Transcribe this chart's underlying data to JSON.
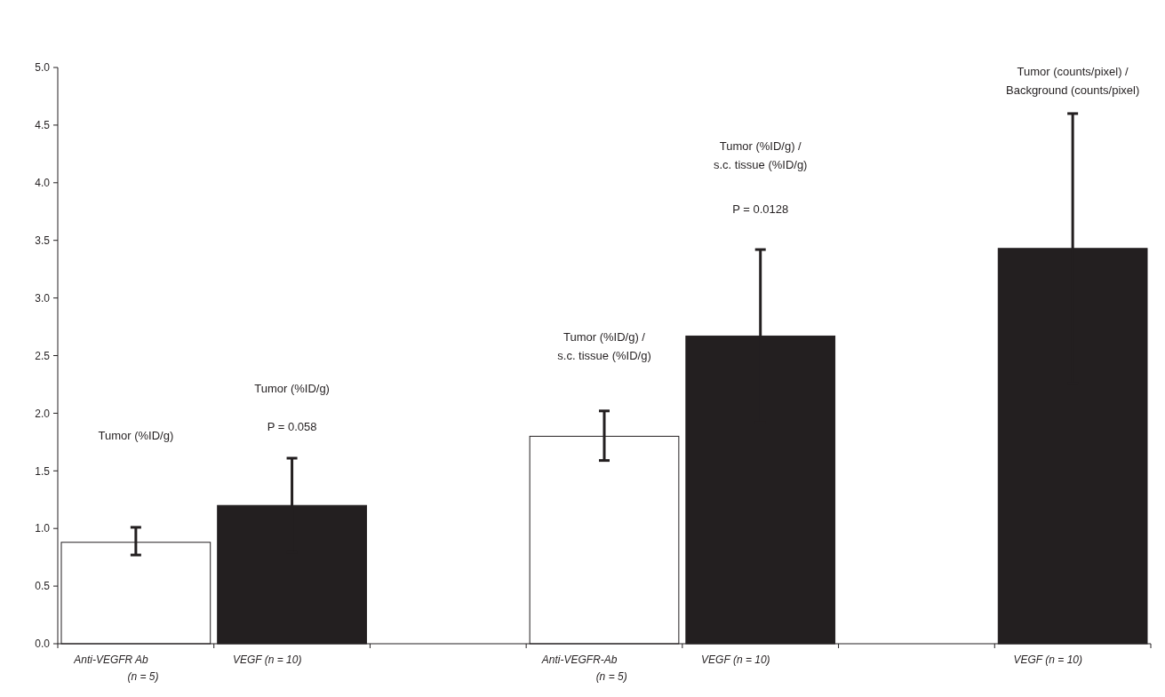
{
  "chart_data": {
    "type": "bar",
    "categories": [
      "Anti-VEGFR Ab\n(n = 5)",
      "VEGF (n = 10)",
      null,
      "Anti-VEGFR-Ab\n(n = 5)",
      "VEGF (n = 10)",
      null,
      "VEGF (n = 10)"
    ],
    "values": [
      0.88,
      1.2,
      null,
      1.8,
      2.67,
      null,
      3.43
    ],
    "colors": [
      "#ffffff",
      "#231f20",
      null,
      "#ffffff",
      "#231f20",
      null,
      "#231f20"
    ],
    "errors": [
      [
        0.77,
        1.01
      ],
      0.41,
      null,
      [
        1.59,
        2.02
      ],
      0.75,
      null,
      1.17
    ],
    "ylim": [
      0,
      5
    ],
    "yticks": [
      {
        "value": 0,
        "label": "0.0"
      },
      {
        "value": 0.5,
        "label": "0.5"
      },
      {
        "value": 1,
        "label": "1.0"
      },
      {
        "value": 1.5,
        "label": "1.5"
      },
      {
        "value": 2,
        "label": "2.0"
      },
      {
        "value": 2.5,
        "label": "2.5"
      },
      {
        "value": 3,
        "label": "3.0"
      },
      {
        "value": 3.5,
        "label": "3.5"
      },
      {
        "value": 4,
        "label": "4.0"
      },
      {
        "value": 4.5,
        "label": "4.5"
      },
      {
        "value": 5,
        "label": "5.0"
      }
    ],
    "annotations": [
      "Tumor (%ID/g)",
      "Tumor (%ID/g)",
      "P = 0.058",
      "Tumor (%ID/g) /\ns.c. tissue (%ID/g)",
      "Tumor (%ID/g) /\ns.c. tissue (%ID/g)",
      "P = 0.0128",
      "Tumor (counts/pixel) /\nBackground (counts/pixel)"
    ],
    "grid": false
  }
}
